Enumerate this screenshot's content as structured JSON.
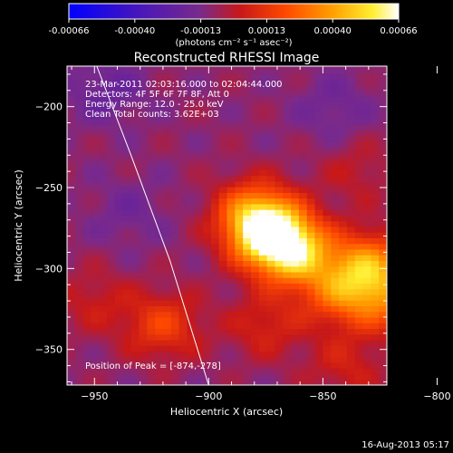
{
  "colorbar": {
    "colormap": "blue-purple-red-orange-yellow-white",
    "tick_labels": [
      "-0.00066",
      "-0.00040",
      "-0.00013",
      "0.00013",
      "0.00040",
      "0.00066"
    ],
    "units_label": "(photons cm⁻² s⁻¹ asec⁻²)"
  },
  "plot": {
    "title": "Reconstructed RHESSI Image",
    "info_lines": [
      "23-Mar-2011 02:03:16.000 to 02:04:44.000",
      "Detectors: 4F 5F 6F 7F 8F, Att 0",
      "Energy Range: 12.0 - 25.0 keV",
      "Clean    Total counts: 3.62E+03"
    ],
    "peak_label": "Position of Peak = [-874,-278]",
    "footer_date": "16-Aug-2013 05:17",
    "background_color": "#000000",
    "axis_color": "#ffffff"
  },
  "chart_data": {
    "type": "heatmap",
    "title": "Reconstructed RHESSI Image",
    "xlabel": "Heliocentric X (arcsec)",
    "ylabel": "Heliocentric Y (arcsec)",
    "xlim": [
      -962,
      -822
    ],
    "ylim": [
      -372,
      -175
    ],
    "x_ticks": [
      -950,
      -900,
      -850,
      -800
    ],
    "y_ticks": [
      -350,
      -300,
      -250,
      -200
    ],
    "x_tick_labels": [
      "−950",
      "−900",
      "−850",
      "−800"
    ],
    "y_tick_labels": [
      "−350",
      "−300",
      "−250",
      "−200"
    ],
    "value_range": [
      -0.00066,
      0.00066
    ],
    "peak": [
      -874,
      -278
    ],
    "limb_line": [
      [
        -949,
        -175
      ],
      [
        -934,
        -230
      ],
      [
        -917,
        -295
      ],
      [
        -900,
        -372
      ]
    ],
    "sources": [
      {
        "x": -874,
        "y": -278,
        "amp": 0.00066
      },
      {
        "x": -862,
        "y": -290,
        "amp": 0.0005
      },
      {
        "x": -881,
        "y": -265,
        "amp": 0.0003
      },
      {
        "x": -830,
        "y": -298,
        "amp": 0.00042
      },
      {
        "x": -843,
        "y": -315,
        "amp": 0.0003
      },
      {
        "x": -822,
        "y": -320,
        "amp": 0.00028
      },
      {
        "x": -920,
        "y": -335,
        "amp": 0.00025
      },
      {
        "x": -950,
        "y": -320,
        "amp": 0.00012
      },
      {
        "x": -875,
        "y": -335,
        "amp": 0.00016
      },
      {
        "x": -840,
        "y": -360,
        "amp": 0.00014
      },
      {
        "x": -835,
        "y": -240,
        "amp": 0.0001
      },
      {
        "x": -945,
        "y": -190,
        "amp": -0.00012
      },
      {
        "x": -935,
        "y": -265,
        "amp": -8e-05
      },
      {
        "x": -845,
        "y": -200,
        "amp": -9e-05
      }
    ]
  }
}
